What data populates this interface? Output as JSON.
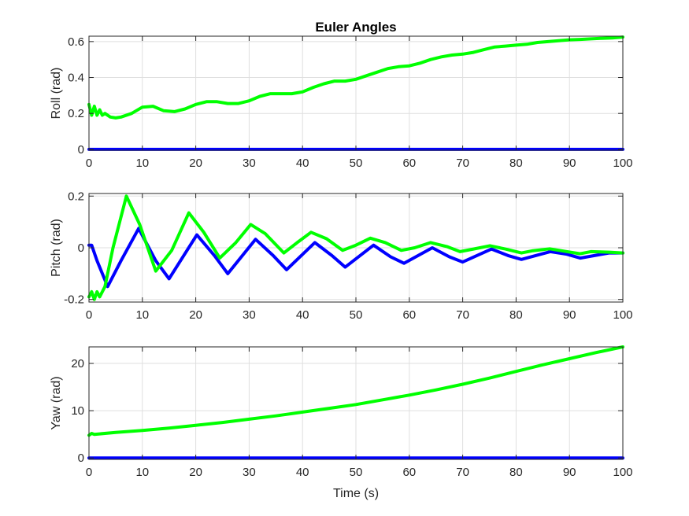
{
  "chart_data": [
    {
      "type": "line",
      "title": "Euler Angles",
      "ylabel": "Roll (rad)",
      "xlabel": "",
      "xlim": [
        0,
        100
      ],
      "ylim": [
        -0.005,
        0.63
      ],
      "xticks": [
        0,
        10,
        20,
        30,
        40,
        50,
        60,
        70,
        80,
        90,
        100
      ],
      "xtick_labels": [
        "0",
        "10",
        "20",
        "30",
        "40",
        "50",
        "60",
        "70",
        "80",
        "90",
        "100"
      ],
      "yticks": [
        0,
        0.2,
        0.4,
        0.6
      ],
      "ytick_labels": [
        "0",
        "0.2",
        "0.4",
        "0.6"
      ],
      "grid": true,
      "series": [
        {
          "color": "#0000FF",
          "x": [
            0,
            100
          ],
          "y": [
            0,
            0
          ]
        },
        {
          "color": "#00FF00",
          "x": [
            0,
            0.5,
            1,
            1.5,
            2,
            2.5,
            3,
            4,
            5,
            6,
            8,
            10,
            12,
            14,
            16,
            18,
            20,
            22,
            24,
            26,
            28,
            30,
            32,
            34,
            36,
            38,
            40,
            42,
            44,
            46,
            48,
            50,
            52,
            54,
            56,
            58,
            60,
            62,
            64,
            66,
            68,
            70,
            72,
            74,
            76,
            78,
            80,
            82,
            84,
            86,
            88,
            90,
            92,
            94,
            96,
            98,
            100
          ],
          "y": [
            0.25,
            0.19,
            0.24,
            0.19,
            0.22,
            0.19,
            0.2,
            0.18,
            0.175,
            0.18,
            0.2,
            0.235,
            0.24,
            0.215,
            0.21,
            0.225,
            0.25,
            0.265,
            0.265,
            0.255,
            0.255,
            0.27,
            0.295,
            0.31,
            0.31,
            0.31,
            0.32,
            0.345,
            0.365,
            0.38,
            0.38,
            0.39,
            0.41,
            0.43,
            0.45,
            0.46,
            0.465,
            0.48,
            0.5,
            0.515,
            0.525,
            0.53,
            0.54,
            0.555,
            0.57,
            0.575,
            0.58,
            0.585,
            0.595,
            0.6,
            0.605,
            0.61,
            0.612,
            0.615,
            0.618,
            0.62,
            0.625
          ]
        }
      ]
    },
    {
      "type": "line",
      "title": "",
      "ylabel": "Pitch (rad)",
      "xlabel": "",
      "xlim": [
        0,
        100
      ],
      "ylim": [
        -0.21,
        0.21
      ],
      "xticks": [
        0,
        10,
        20,
        30,
        40,
        50,
        60,
        70,
        80,
        90,
        100
      ],
      "xtick_labels": [
        "0",
        "10",
        "20",
        "30",
        "40",
        "50",
        "60",
        "70",
        "80",
        "90",
        "100"
      ],
      "yticks": [
        -0.2,
        0,
        0.2
      ],
      "ytick_labels": [
        "-0.2",
        "0",
        "0.2"
      ],
      "grid": true,
      "series": [
        {
          "color": "#0000FF",
          "x": [
            0,
            0.5,
            1.5,
            3.5,
            6,
            9.3,
            12.5,
            15,
            20.2,
            23.5,
            26,
            31.2,
            34.5,
            37,
            42.3,
            45.5,
            48,
            53.3,
            56.5,
            59,
            64.3,
            67.5,
            70,
            75.4,
            78.5,
            81,
            86.4,
            89.5,
            92,
            97.4,
            100
          ],
          "y": [
            0.01,
            0.01,
            -0.05,
            -0.15,
            -0.05,
            0.075,
            -0.05,
            -0.12,
            0.05,
            -0.03,
            -0.1,
            0.033,
            -0.03,
            -0.085,
            0.02,
            -0.03,
            -0.075,
            0.01,
            -0.035,
            -0.06,
            0.0,
            -0.035,
            -0.055,
            -0.005,
            -0.03,
            -0.045,
            -0.015,
            -0.025,
            -0.04,
            -0.02,
            -0.02
          ]
        },
        {
          "color": "#00FF00",
          "x": [
            0,
            0.5,
            1,
            1.5,
            2,
            3,
            4.5,
            7,
            9.5,
            12.5,
            15.5,
            18.7,
            21.5,
            24.5,
            27.5,
            30.3,
            33,
            36.5,
            39,
            41.6,
            44.5,
            47.5,
            50,
            52.7,
            55.5,
            58.5,
            61,
            64,
            67,
            69.5,
            72,
            75.1,
            78,
            81,
            83,
            86.3,
            89,
            92,
            94,
            97.5,
            100
          ],
          "y": [
            -0.19,
            -0.17,
            -0.2,
            -0.17,
            -0.19,
            -0.15,
            0.0,
            0.2,
            0.09,
            -0.09,
            -0.01,
            0.135,
            0.06,
            -0.04,
            0.02,
            0.09,
            0.055,
            -0.02,
            0.02,
            0.06,
            0.035,
            -0.01,
            0.01,
            0.037,
            0.02,
            -0.01,
            0.0,
            0.02,
            0.005,
            -0.015,
            -0.005,
            0.008,
            -0.005,
            -0.02,
            -0.012,
            -0.004,
            -0.013,
            -0.023,
            -0.015,
            -0.017,
            -0.02
          ]
        }
      ]
    },
    {
      "type": "line",
      "title": "",
      "ylabel": "Yaw (rad)",
      "xlabel": "Time (s)",
      "xlim": [
        0,
        100
      ],
      "ylim": [
        -0.3,
        23.5
      ],
      "xticks": [
        0,
        10,
        20,
        30,
        40,
        50,
        60,
        70,
        80,
        90,
        100
      ],
      "xtick_labels": [
        "0",
        "10",
        "20",
        "30",
        "40",
        "50",
        "60",
        "70",
        "80",
        "90",
        "100"
      ],
      "yticks": [
        0,
        10,
        20
      ],
      "ytick_labels": [
        "0",
        "10",
        "20"
      ],
      "grid": true,
      "series": [
        {
          "color": "#0000FF",
          "x": [
            0,
            100
          ],
          "y": [
            0,
            0
          ]
        },
        {
          "color": "#00FF00",
          "x": [
            0,
            0.5,
            1,
            2,
            5,
            10,
            15,
            20,
            25,
            30,
            35,
            40,
            45,
            50,
            55,
            60,
            65,
            70,
            75,
            80,
            85,
            90,
            95,
            100
          ],
          "y": [
            4.8,
            5.2,
            5.0,
            5.1,
            5.4,
            5.8,
            6.3,
            6.9,
            7.5,
            8.2,
            8.9,
            9.7,
            10.5,
            11.3,
            12.3,
            13.3,
            14.4,
            15.6,
            16.9,
            18.3,
            19.7,
            21.0,
            22.3,
            23.5
          ]
        }
      ]
    }
  ]
}
